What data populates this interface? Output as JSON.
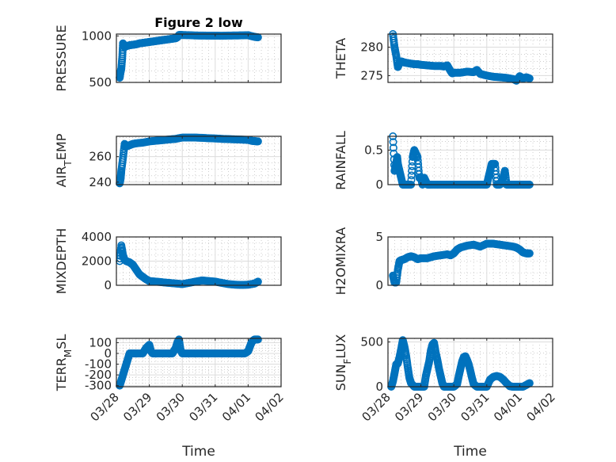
{
  "chart_data": {
    "type": "scatter",
    "title": "Figure 2 low",
    "x_ticks": [
      "03/28",
      "03/29",
      "03/30",
      "03/31",
      "04/01",
      "04/02"
    ],
    "x_unit": "days since 03/28",
    "xlim": [
      0,
      5
    ],
    "marker_color": "#0072BD",
    "panels": [
      {
        "id": "pressure",
        "ylabel": "PRESSURE",
        "ylabel_sub": null,
        "ylim": [
          500,
          1020
        ],
        "yticks": [
          500,
          1000
        ],
        "ytick_labels": [
          "500",
          "1000"
        ],
        "x_label": null,
        "show_x_ticks": false,
        "x": [
          0.1,
          0.12,
          0.15,
          0.18,
          0.2,
          0.25,
          0.3,
          0.4,
          0.5,
          0.6,
          0.7,
          0.8,
          0.9,
          1.0,
          1.1,
          1.2,
          1.3,
          1.4,
          1.5,
          1.6,
          1.7,
          1.8,
          1.85,
          1.9,
          2.0,
          2.2,
          2.4,
          2.6,
          2.8,
          3.0,
          3.2,
          3.4,
          3.6,
          3.8,
          4.0,
          4.1,
          4.2,
          4.3
        ],
        "y": [
          550,
          600,
          650,
          780,
          920,
          880,
          890,
          900,
          905,
          910,
          920,
          925,
          930,
          935,
          940,
          945,
          950,
          955,
          960,
          965,
          970,
          975,
          985,
          1010,
          1010,
          1008,
          1005,
          1004,
          1003,
          1003,
          1002,
          1004,
          1005,
          1006,
          1008,
          998,
          990,
          985
        ]
      },
      {
        "id": "theta",
        "ylabel": "THETA",
        "ylabel_sub": null,
        "ylim": [
          273.8,
          282.3
        ],
        "yticks": [
          275,
          280
        ],
        "ytick_labels": [
          "275",
          "280"
        ],
        "x_label": null,
        "show_x_ticks": false,
        "x": [
          0.15,
          0.2,
          0.25,
          0.3,
          0.35,
          0.4,
          0.5,
          0.6,
          0.7,
          0.8,
          0.9,
          1.0,
          1.2,
          1.4,
          1.6,
          1.7,
          1.8,
          1.9,
          1.95,
          2.0,
          2.2,
          2.4,
          2.6,
          2.7,
          2.8,
          3.0,
          3.2,
          3.4,
          3.6,
          3.8,
          3.9,
          4.0,
          4.1,
          4.2,
          4.3
        ],
        "y": [
          282.3,
          280,
          278.5,
          276.5,
          277.2,
          277.5,
          277.3,
          277.2,
          277.1,
          277,
          277,
          276.9,
          276.8,
          276.7,
          276.7,
          276.6,
          276.8,
          275.8,
          275.4,
          275.5,
          275.5,
          275.7,
          275.6,
          276.0,
          275.3,
          275,
          274.8,
          274.7,
          274.6,
          274.4,
          274.1,
          274.9,
          274.5,
          274.7,
          274.5
        ]
      },
      {
        "id": "air_temp",
        "ylabel": "AIR",
        "ylabel_sub": "T",
        "ylabel_rest": "EMP",
        "ylim": [
          238,
          276
        ],
        "yticks": [
          240,
          260
        ],
        "ytick_labels": [
          "240",
          "260"
        ],
        "x_label": null,
        "show_x_ticks": false,
        "x": [
          0.1,
          0.13,
          0.15,
          0.2,
          0.25,
          0.3,
          0.4,
          0.5,
          0.6,
          0.8,
          1.0,
          1.2,
          1.4,
          1.6,
          1.8,
          2.0,
          2.2,
          2.4,
          2.6,
          2.8,
          3.0,
          3.2,
          3.4,
          3.6,
          3.8,
          4.0,
          4.1,
          4.2,
          4.3
        ],
        "y": [
          239,
          243,
          249,
          259,
          270,
          268,
          269,
          270,
          270.5,
          271,
          272,
          272.5,
          273,
          273.5,
          274,
          275,
          275,
          275,
          274.8,
          274.5,
          274.3,
          274,
          273.8,
          273.6,
          273.4,
          273.2,
          272.5,
          272.2,
          272
        ]
      },
      {
        "id": "rainfall",
        "ylabel": "RAINFALL",
        "ylabel_sub": null,
        "ylim": [
          0,
          0.7
        ],
        "yticks": [
          0,
          0.5
        ],
        "ytick_labels": [
          "0",
          "0.5"
        ],
        "x_label": null,
        "show_x_ticks": false,
        "x": [
          0.15,
          0.2,
          0.25,
          0.28,
          0.3,
          0.35,
          0.4,
          0.45,
          0.5,
          0.6,
          0.7,
          0.75,
          0.8,
          0.9,
          0.95,
          1.0,
          1.05,
          1.1,
          1.2,
          1.3,
          1.5,
          1.7,
          1.9,
          2.1,
          2.3,
          2.5,
          2.7,
          2.9,
          3.0,
          3.05,
          3.1,
          3.15,
          3.2,
          3.25,
          3.3,
          3.4,
          3.5,
          3.55,
          3.6,
          3.7,
          3.8,
          3.9,
          4.0,
          4.1,
          4.2,
          4.3
        ],
        "y": [
          0.7,
          0.2,
          0.3,
          0.4,
          0.3,
          0.2,
          0.1,
          0,
          0,
          0,
          0,
          0.4,
          0.5,
          0.4,
          0.1,
          0.1,
          0,
          0.1,
          0,
          0,
          0,
          0,
          0,
          0,
          0,
          0,
          0,
          0,
          0,
          0.1,
          0.2,
          0.3,
          0.3,
          0.3,
          0,
          0,
          0.1,
          0.2,
          0,
          0,
          0,
          0,
          0,
          0,
          0,
          0
        ]
      },
      {
        "id": "mixdepth",
        "ylabel": "MIXDEPTH",
        "ylabel_sub": null,
        "ylim": [
          0,
          4000
        ],
        "yticks": [
          0,
          2000,
          4000
        ],
        "ytick_labels": [
          "0",
          "2000",
          "4000"
        ],
        "x_label": null,
        "show_x_ticks": false,
        "x": [
          0.1,
          0.15,
          0.2,
          0.25,
          0.3,
          0.4,
          0.5,
          0.6,
          0.7,
          0.8,
          0.9,
          1.0,
          1.2,
          1.4,
          1.6,
          1.8,
          2.0,
          2.2,
          2.4,
          2.6,
          2.8,
          3.0,
          3.2,
          3.4,
          3.6,
          3.8,
          4.0,
          4.1,
          4.2,
          4.3
        ],
        "y": [
          2000,
          3300,
          2500,
          2100,
          2000,
          1900,
          1700,
          1300,
          900,
          700,
          500,
          350,
          300,
          250,
          200,
          150,
          100,
          200,
          300,
          400,
          350,
          300,
          200,
          100,
          50,
          30,
          50,
          100,
          150,
          300
        ]
      },
      {
        "id": "h2omixra",
        "ylabel": "H2OMIXRA",
        "ylabel_sub": null,
        "ylim": [
          0,
          5
        ],
        "yticks": [
          0,
          5
        ],
        "ytick_labels": [
          "0",
          "5"
        ],
        "x_label": null,
        "show_x_ticks": false,
        "x": [
          0.15,
          0.2,
          0.25,
          0.3,
          0.35,
          0.4,
          0.5,
          0.6,
          0.7,
          0.8,
          0.9,
          1.0,
          1.2,
          1.4,
          1.6,
          1.8,
          1.9,
          2.0,
          2.1,
          2.2,
          2.4,
          2.6,
          2.8,
          3.0,
          3.2,
          3.4,
          3.6,
          3.8,
          3.9,
          4.0,
          4.1,
          4.2,
          4.3
        ],
        "y": [
          1.0,
          0.3,
          0.3,
          1.6,
          2.5,
          2.6,
          2.7,
          2.9,
          3.0,
          2.9,
          2.7,
          2.8,
          2.8,
          3.0,
          3.1,
          3.2,
          3.1,
          3.3,
          3.7,
          3.9,
          4.1,
          4.2,
          4.0,
          4.3,
          4.3,
          4.2,
          4.1,
          4.0,
          3.9,
          3.7,
          3.4,
          3.3,
          3.3
        ]
      },
      {
        "id": "terr_msl",
        "ylabel": "TERR",
        "ylabel_sub": "M",
        "ylabel_rest": "SL",
        "ylim": [
          -310,
          140
        ],
        "yticks": [
          -300,
          -200,
          -100,
          0,
          100
        ],
        "ytick_labels": [
          "-300",
          "-200",
          "-100",
          "0",
          "100"
        ],
        "x_label": "Time",
        "show_x_ticks": true,
        "x": [
          0.1,
          0.15,
          0.2,
          0.25,
          0.3,
          0.35,
          0.4,
          0.45,
          0.5,
          0.6,
          0.8,
          0.9,
          1.0,
          1.05,
          1.1,
          1.2,
          1.4,
          1.6,
          1.7,
          1.8,
          1.85,
          1.9,
          1.95,
          2.0,
          2.2,
          2.4,
          2.6,
          2.8,
          3.0,
          3.2,
          3.4,
          3.6,
          3.8,
          3.9,
          4.0,
          4.05,
          4.1,
          4.15,
          4.2,
          4.3
        ],
        "y": [
          -300,
          -250,
          -200,
          -150,
          -100,
          -50,
          0,
          0,
          0,
          0,
          0,
          50,
          80,
          20,
          0,
          0,
          0,
          0,
          0,
          50,
          100,
          130,
          30,
          0,
          0,
          0,
          0,
          0,
          0,
          0,
          0,
          0,
          0,
          0,
          20,
          60,
          100,
          120,
          130,
          130
        ]
      },
      {
        "id": "sun_flux",
        "ylabel": "SUN",
        "ylabel_sub": "F",
        "ylabel_rest": "LUX",
        "ylim": [
          0,
          540
        ],
        "yticks": [
          0,
          500
        ],
        "ytick_labels": [
          "0",
          "500"
        ],
        "x_label": "Time",
        "show_x_ticks": true,
        "x": [
          0.1,
          0.15,
          0.2,
          0.25,
          0.3,
          0.35,
          0.4,
          0.45,
          0.5,
          0.55,
          0.6,
          0.65,
          0.7,
          0.8,
          0.9,
          1.0,
          1.1,
          1.15,
          1.2,
          1.25,
          1.3,
          1.35,
          1.4,
          1.45,
          1.5,
          1.55,
          1.6,
          1.65,
          1.7,
          1.8,
          1.9,
          2.0,
          2.1,
          2.15,
          2.2,
          2.25,
          2.3,
          2.35,
          2.4,
          2.45,
          2.5,
          2.55,
          2.6,
          2.7,
          2.8,
          2.9,
          3.0,
          3.1,
          3.2,
          3.3,
          3.4,
          3.5,
          3.6,
          3.7,
          3.8,
          3.9,
          4.0,
          4.1,
          4.2,
          4.3
        ],
        "y": [
          0,
          60,
          150,
          250,
          260,
          330,
          420,
          520,
          450,
          350,
          220,
          100,
          40,
          0,
          0,
          0,
          0,
          120,
          200,
          280,
          400,
          470,
          490,
          380,
          300,
          200,
          120,
          40,
          0,
          0,
          0,
          0,
          30,
          120,
          200,
          280,
          330,
          340,
          300,
          250,
          180,
          100,
          30,
          0,
          0,
          0,
          0,
          80,
          110,
          120,
          110,
          80,
          40,
          5,
          0,
          0,
          0,
          0,
          20,
          40
        ]
      }
    ]
  }
}
